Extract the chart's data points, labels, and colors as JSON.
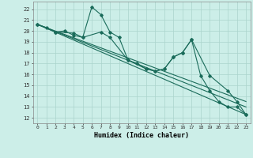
{
  "xlabel": "Humidex (Indice chaleur)",
  "background_color": "#cceee8",
  "grid_color": "#aad4cc",
  "line_color": "#1a6b5a",
  "xlim": [
    -0.5,
    23.5
  ],
  "ylim": [
    11.5,
    22.7
  ],
  "yticks": [
    12,
    13,
    14,
    15,
    16,
    17,
    18,
    19,
    20,
    21,
    22
  ],
  "xticks": [
    0,
    1,
    2,
    3,
    4,
    5,
    6,
    7,
    8,
    9,
    10,
    11,
    12,
    13,
    14,
    15,
    16,
    17,
    18,
    19,
    20,
    21,
    22,
    23
  ],
  "line1_x": [
    0,
    1,
    2,
    3,
    4,
    5,
    6,
    7,
    8,
    9,
    10,
    11,
    12,
    13,
    14,
    15,
    16,
    17,
    18,
    19,
    20,
    21,
    22,
    23
  ],
  "line1_y": [
    20.6,
    20.3,
    19.9,
    20.0,
    19.6,
    19.4,
    22.2,
    21.5,
    19.9,
    19.4,
    17.3,
    17.0,
    16.5,
    16.3,
    16.5,
    17.6,
    18.0,
    19.2,
    15.9,
    14.5,
    13.5,
    13.0,
    13.0,
    12.3
  ],
  "line2_x": [
    0,
    2,
    4,
    5,
    7,
    8,
    10,
    12,
    13,
    14,
    15,
    16,
    17,
    19,
    21,
    22,
    23
  ],
  "line2_y": [
    20.6,
    19.9,
    19.8,
    19.4,
    19.9,
    19.4,
    17.3,
    16.5,
    16.3,
    16.5,
    17.6,
    18.0,
    19.2,
    15.9,
    14.5,
    13.5,
    12.3
  ],
  "line3_x": [
    0,
    23
  ],
  "line3_y": [
    20.6,
    12.3
  ],
  "line4_x": [
    0,
    23
  ],
  "line4_y": [
    20.6,
    13.0
  ],
  "line5_x": [
    0,
    23
  ],
  "line5_y": [
    20.6,
    13.5
  ]
}
